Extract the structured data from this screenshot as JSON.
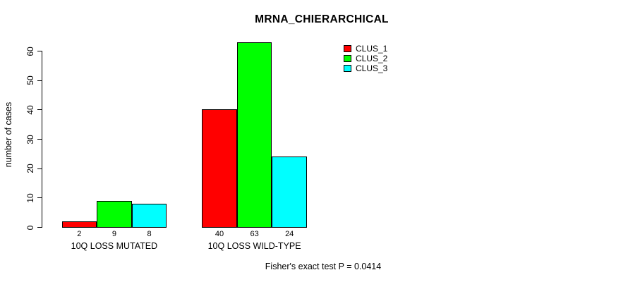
{
  "chart_data": {
    "type": "bar",
    "title": "MRNA_CHIERARCHICAL",
    "ylabel": "number of cases",
    "xlabel": "",
    "categories": [
      "10Q LOSS MUTATED",
      "10Q LOSS WILD-TYPE"
    ],
    "series": [
      {
        "name": "CLUS_1",
        "color": "#ff0000",
        "values": [
          2,
          40
        ]
      },
      {
        "name": "CLUS_2",
        "color": "#00ff00",
        "values": [
          9,
          63
        ]
      },
      {
        "name": "CLUS_3",
        "color": "#00ffff",
        "values": [
          8,
          24
        ]
      }
    ],
    "ylim": [
      0,
      60
    ],
    "yticks": [
      0,
      10,
      20,
      30,
      40,
      50,
      60
    ],
    "show_bar_values": true,
    "grid": false,
    "legend_position": "top-right",
    "annotation": "Fisher's exact test P = 0.0414",
    "bar_border_color": "#000000",
    "axis_color": "#000000",
    "text_color": "#000000",
    "background_color": "#ffffff"
  }
}
